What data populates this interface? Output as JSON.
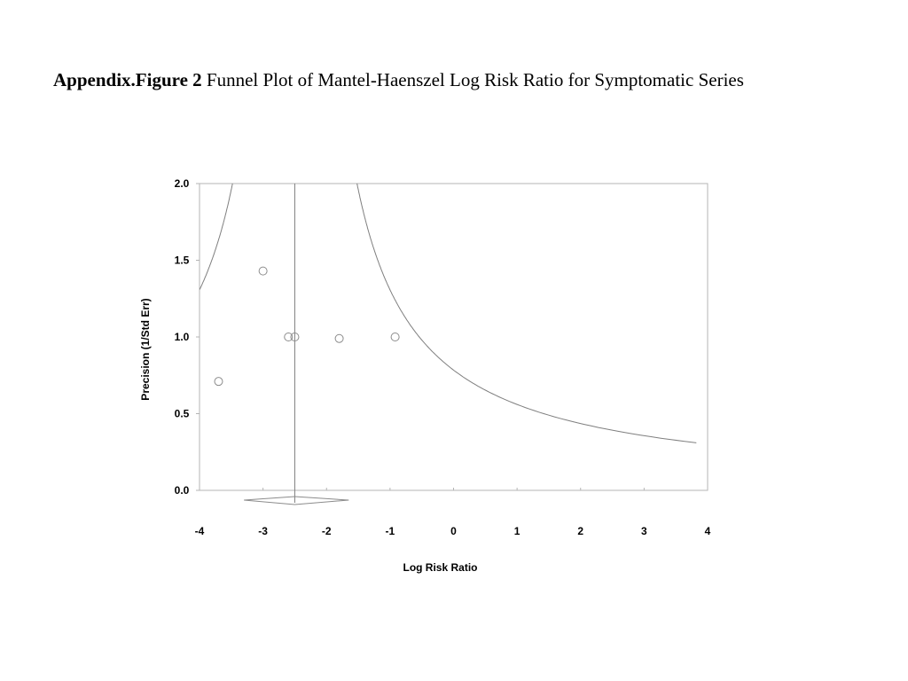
{
  "figure": {
    "label": "Appendix.Figure 2",
    "caption": "Funnel Plot of Mantel-Haenszel Log Risk Ratio for Symptomatic Series"
  },
  "chart_data": {
    "type": "scatter",
    "subtype": "funnel",
    "xlabel": "Log Risk Ratio",
    "ylabel": "Precision (1/Std Err)",
    "xlim": [
      -4,
      4
    ],
    "ylim": [
      0,
      2
    ],
    "xticks": [
      -4,
      -3,
      -2,
      -1,
      0,
      1,
      2,
      3,
      4
    ],
    "yticks": [
      0,
      0.5,
      1,
      1.5,
      2
    ],
    "xtick_labels": [
      "-4",
      "-3",
      "-2",
      "-1",
      "0",
      "1",
      "2",
      "3",
      "4"
    ],
    "ytick_labels": [
      "0.0",
      "0.5",
      "1.0",
      "1.5",
      "2.0"
    ],
    "grid": false,
    "legend": "none",
    "pooled_estimate": -2.5,
    "pooled_ci": [
      -3.3,
      -1.65
    ],
    "points": [
      {
        "x": -3.7,
        "y": 0.71
      },
      {
        "x": -3.0,
        "y": 1.43
      },
      {
        "x": -2.6,
        "y": 1.0
      },
      {
        "x": -2.5,
        "y": 1.0
      },
      {
        "x": -1.8,
        "y": 0.99
      },
      {
        "x": -0.92,
        "y": 1.0
      }
    ],
    "colors": {
      "lines": "#7f7f7f",
      "markers": "#8c8c8c",
      "frame": "#b4b4b4"
    }
  }
}
